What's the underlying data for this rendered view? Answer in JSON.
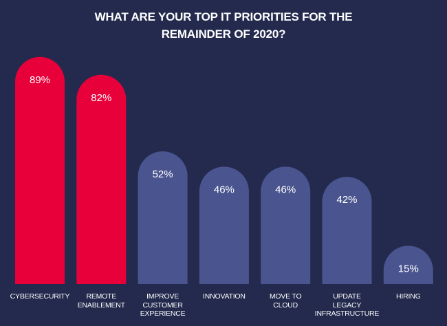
{
  "chart_data": {
    "type": "bar",
    "title": "WHAT ARE YOUR TOP IT PRIORITIES FOR THE REMAINDER OF 2020?",
    "title_lines": [
      "WHAT ARE YOUR TOP IT PRIORITIES FOR THE",
      "REMAINDER OF 2020?"
    ],
    "categories": [
      "CYBERSECURITY",
      "REMOTE ENABLEMENT",
      "IMPROVE CUSTOMER EXPERIENCE",
      "INNOVATION",
      "MOVE TO CLOUD",
      "UPDATE LEGACY INFRASTRUCTURE",
      "HIRING"
    ],
    "category_lines": [
      [
        "CYBERSECURITY"
      ],
      [
        "REMOTE",
        "ENABLEMENT"
      ],
      [
        "IMPROVE",
        "CUSTOMER",
        "EXPERIENCE"
      ],
      [
        "INNOVATION"
      ],
      [
        "MOVE TO",
        "CLOUD"
      ],
      [
        "UPDATE",
        "LEGACY",
        "INFRASTRUCTURE"
      ],
      [
        "HIRING"
      ]
    ],
    "values": [
      89,
      82,
      52,
      46,
      46,
      42,
      15
    ],
    "value_labels": [
      "89%",
      "82%",
      "52%",
      "46%",
      "46%",
      "42%",
      "15%"
    ],
    "highlighted": [
      true,
      true,
      false,
      false,
      false,
      false,
      false
    ],
    "unit": "%",
    "xlabel": "",
    "ylabel": "",
    "ylim": [
      0,
      100
    ],
    "grid": false,
    "legend": "none"
  },
  "colors": {
    "background": "#232a4d",
    "highlight": "#e8003a",
    "default": "#4a5590",
    "text": "#ffffff"
  }
}
